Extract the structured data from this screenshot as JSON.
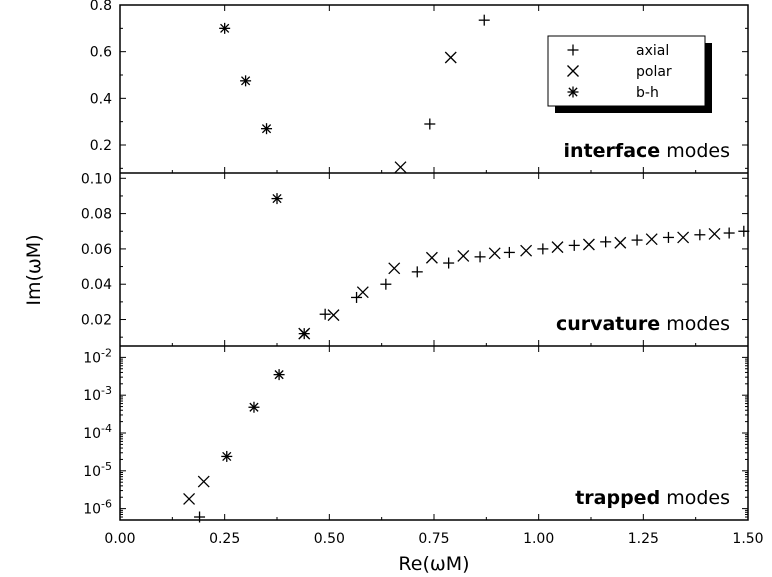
{
  "chart_data": {
    "type": "scatter",
    "xlabel": "Re(ωM)",
    "ylabel": "Im(ωM)",
    "xlim": [
      0,
      1.5
    ],
    "x_ticks": [
      "0.00",
      "0.25",
      "0.50",
      "0.75",
      "1.00",
      "1.25",
      "1.50"
    ],
    "x_tick_values": [
      0,
      0.25,
      0.5,
      0.75,
      1.0,
      1.25,
      1.5
    ],
    "legend": {
      "position": "top-right",
      "entries": [
        {
          "label": "axial",
          "marker": "plus"
        },
        {
          "label": "polar",
          "marker": "cross"
        },
        {
          "label": "b-h",
          "marker": "star"
        }
      ]
    },
    "panels": [
      {
        "id": "interface",
        "scale": "linear",
        "ylim": [
          0.08,
          0.8
        ],
        "y_ticks": [
          "0.2",
          "0.4",
          "0.6",
          "0.8"
        ],
        "y_tick_values": [
          0.2,
          0.4,
          0.6,
          0.8
        ],
        "annotation": {
          "bold": "interface",
          "rest": " modes"
        },
        "series": [
          {
            "name": "axial",
            "marker": "plus",
            "points": [
              [
                0.74,
                0.29
              ],
              [
                0.87,
                0.735
              ]
            ]
          },
          {
            "name": "polar",
            "marker": "cross",
            "points": [
              [
                0.67,
                0.105
              ],
              [
                0.79,
                0.575
              ]
            ]
          },
          {
            "name": "b-h",
            "marker": "star",
            "points": [
              [
                0.25,
                0.7
              ],
              [
                0.3,
                0.475
              ],
              [
                0.35,
                0.27
              ]
            ]
          }
        ]
      },
      {
        "id": "curvature",
        "scale": "linear",
        "ylim": [
          0.005,
          0.103
        ],
        "y_ticks": [
          "0.02",
          "0.04",
          "0.06",
          "0.08",
          "0.10"
        ],
        "y_tick_values": [
          0.02,
          0.04,
          0.06,
          0.08,
          0.1
        ],
        "annotation": {
          "bold": "curvature",
          "rest": " modes"
        },
        "series": [
          {
            "name": "axial",
            "marker": "plus",
            "points": [
              [
                0.49,
                0.023
              ],
              [
                0.565,
                0.0325
              ],
              [
                0.635,
                0.04
              ],
              [
                0.71,
                0.047
              ],
              [
                0.785,
                0.052
              ],
              [
                0.86,
                0.0555
              ],
              [
                0.93,
                0.058
              ],
              [
                1.01,
                0.06
              ],
              [
                1.085,
                0.062
              ],
              [
                1.16,
                0.064
              ],
              [
                1.235,
                0.065
              ],
              [
                1.31,
                0.0665
              ],
              [
                1.385,
                0.068
              ],
              [
                1.455,
                0.069
              ],
              [
                1.49,
                0.07
              ]
            ]
          },
          {
            "name": "polar",
            "marker": "cross",
            "points": [
              [
                0.44,
                0.012
              ],
              [
                0.51,
                0.0225
              ],
              [
                0.58,
                0.0355
              ],
              [
                0.655,
                0.049
              ],
              [
                0.745,
                0.055
              ],
              [
                0.82,
                0.056
              ],
              [
                0.895,
                0.0575
              ],
              [
                0.97,
                0.059
              ],
              [
                1.045,
                0.061
              ],
              [
                1.12,
                0.0625
              ],
              [
                1.195,
                0.0635
              ],
              [
                1.27,
                0.0655
              ],
              [
                1.345,
                0.0665
              ],
              [
                1.42,
                0.0685
              ]
            ]
          },
          {
            "name": "b-h",
            "marker": "star",
            "points": [
              [
                0.375,
                0.0885
              ],
              [
                0.44,
                0.012
              ]
            ]
          }
        ]
      },
      {
        "id": "trapped",
        "scale": "log",
        "ylim": [
          5e-07,
          0.02
        ],
        "y_ticks": [
          "10-6",
          "10-5",
          "10-4",
          "10-3",
          "10-2"
        ],
        "y_tick_values": [
          1e-06,
          1e-05,
          0.0001,
          0.001,
          0.01
        ],
        "annotation": {
          "bold": "trapped",
          "rest": " modes"
        },
        "series": [
          {
            "name": "axial",
            "marker": "plus",
            "points": [
              [
                0.19,
                6e-07
              ]
            ]
          },
          {
            "name": "polar",
            "marker": "cross",
            "points": [
              [
                0.165,
                1.8e-06
              ],
              [
                0.2,
                5.2e-06
              ]
            ]
          },
          {
            "name": "b-h",
            "marker": "star",
            "points": [
              [
                0.255,
                2.4e-05
              ],
              [
                0.32,
                0.00048
              ],
              [
                0.38,
                0.0035
              ]
            ]
          }
        ]
      }
    ]
  }
}
